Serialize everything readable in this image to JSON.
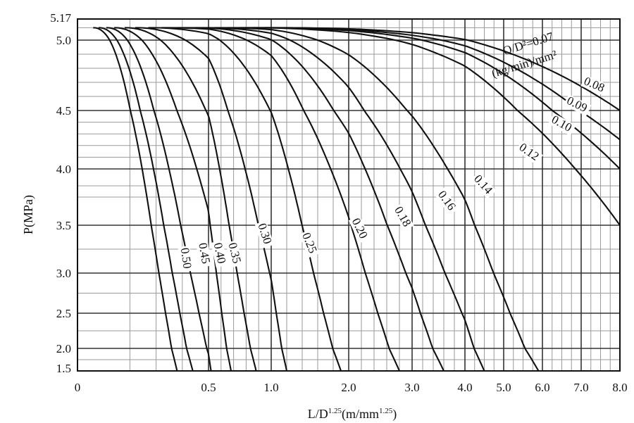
{
  "chart_data": {
    "type": "line",
    "title": "",
    "xlabel": "L/D^1.25(m/mm^1.25)",
    "xlabel_parts": {
      "main": "L/D",
      "sup1": "1.25",
      "mid": "(m/mm",
      "sup2": "1.25",
      "end": ")"
    },
    "ylabel": "P(MPa)",
    "xlim": [
      0,
      8.0
    ],
    "ylim": [
      1.5,
      5.17
    ],
    "x_ticks": [
      {
        "v": 0,
        "label": "0"
      },
      {
        "v": 0.5,
        "label": "0.5"
      },
      {
        "v": 1.0,
        "label": "1.0"
      },
      {
        "v": 2.0,
        "label": "2.0"
      },
      {
        "v": 3.0,
        "label": "3.0"
      },
      {
        "v": 4.0,
        "label": "4.0"
      },
      {
        "v": 5.0,
        "label": "5.0"
      },
      {
        "v": 6.0,
        "label": "6.0"
      },
      {
        "v": 7.0,
        "label": "7.0"
      },
      {
        "v": 8.0,
        "label": "8.0"
      }
    ],
    "y_ticks": [
      {
        "v": 1.5,
        "label": "1.5"
      },
      {
        "v": 2.0,
        "label": "2.0"
      },
      {
        "v": 2.5,
        "label": "2.5"
      },
      {
        "v": 3.0,
        "label": "3.0"
      },
      {
        "v": 3.5,
        "label": "3.5"
      },
      {
        "v": 4.0,
        "label": "4.0"
      },
      {
        "v": 4.5,
        "label": "4.5"
      },
      {
        "v": 5.0,
        "label": "5.0"
      },
      {
        "v": 5.17,
        "label": "5.17"
      }
    ],
    "grid": true,
    "legend": "none",
    "annotation_lines": [
      "Q/D²=0.07",
      "(kg/min)/mm²"
    ],
    "series": [
      {
        "name": "0.07",
        "x0": 0.95,
        "x_end": 8.0,
        "y_end": 4.5
      },
      {
        "name": "0.08",
        "x0": 0.85,
        "x_end": 8.0,
        "y_end": 4.25
      },
      {
        "name": "0.09",
        "x0": 0.75,
        "x_end": 8.0,
        "y_end": 4.0
      },
      {
        "name": "0.10",
        "x0": 0.65,
        "x_end": 8.0,
        "y_end": 3.5
      },
      {
        "name": "0.12",
        "x0": 0.55,
        "x_end": 5.9,
        "y_end": 1.5
      },
      {
        "name": "0.14",
        "x0": 0.45,
        "x_end": 4.5,
        "y_end": 1.5
      },
      {
        "name": "0.16",
        "x0": 0.38,
        "x_end": 3.6,
        "y_end": 1.5
      },
      {
        "name": "0.18",
        "x0": 0.32,
        "x_end": 2.8,
        "y_end": 1.5
      },
      {
        "name": "0.20",
        "x0": 0.27,
        "x_end": 1.9,
        "y_end": 1.5
      },
      {
        "name": "0.25",
        "x0": 0.22,
        "x_end": 1.2,
        "y_end": 1.5
      },
      {
        "name": "0.30",
        "x0": 0.18,
        "x_end": 0.88,
        "y_end": 1.5
      },
      {
        "name": "0.35",
        "x0": 0.14,
        "x_end": 0.68,
        "y_end": 1.5
      },
      {
        "name": "0.40",
        "x0": 0.11,
        "x_end": 0.52,
        "y_end": 1.5
      },
      {
        "name": "0.45",
        "x0": 0.08,
        "x_end": 0.44,
        "y_end": 1.5
      },
      {
        "name": "0.50",
        "x0": 0.06,
        "x_end": 0.38,
        "y_end": 1.5
      }
    ],
    "curve_labels": [
      {
        "text": "0.08",
        "x": 7.3,
        "y": 4.66,
        "angle": 23
      },
      {
        "text": "0.09",
        "x": 6.85,
        "y": 4.52,
        "angle": 26
      },
      {
        "text": "0.10",
        "x": 6.45,
        "y": 4.36,
        "angle": 29
      },
      {
        "text": "0.12",
        "x": 5.6,
        "y": 4.12,
        "angle": 35
      },
      {
        "text": "0.14",
        "x": 4.4,
        "y": 3.84,
        "angle": 48
      },
      {
        "text": "0.16",
        "x": 3.6,
        "y": 3.7,
        "angle": 54
      },
      {
        "text": "0.18",
        "x": 2.8,
        "y": 3.56,
        "angle": 60
      },
      {
        "text": "0.20",
        "x": 2.12,
        "y": 3.45,
        "angle": 64
      },
      {
        "text": "0.25",
        "x": 1.45,
        "y": 3.3,
        "angle": 68
      },
      {
        "text": "0.30",
        "x": 0.92,
        "y": 3.4,
        "angle": 72
      },
      {
        "text": "0.35",
        "x": 0.68,
        "y": 3.2,
        "angle": 76
      },
      {
        "text": "0.40",
        "x": 0.56,
        "y": 3.2,
        "angle": 78
      },
      {
        "text": "0.45",
        "x": 0.47,
        "y": 3.2,
        "angle": 80
      },
      {
        "text": "0.50",
        "x": 0.4,
        "y": 3.15,
        "angle": 82
      }
    ]
  }
}
